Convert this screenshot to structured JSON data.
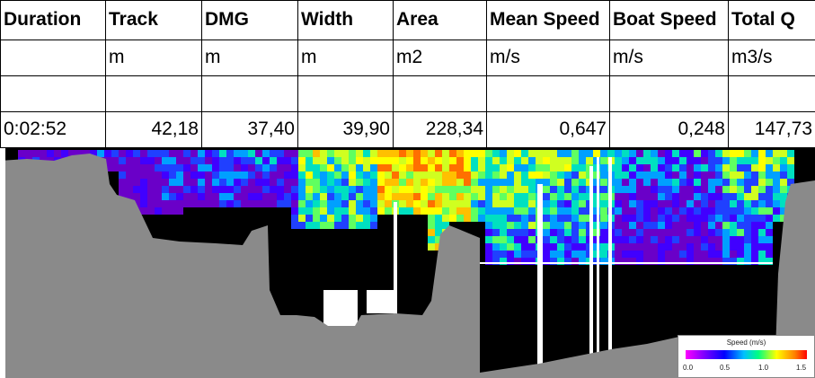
{
  "table": {
    "headers": [
      "Duration",
      "Track",
      "DMG",
      "Width",
      "Area",
      "Mean Speed",
      "Boat Speed",
      "Total Q"
    ],
    "units": [
      "",
      "m",
      "m",
      "m",
      "m2",
      "m/s",
      "m/s",
      "m3/s"
    ],
    "values": [
      "0:02:52",
      "42,18",
      "37,40",
      "39,90",
      "228,34",
      "0,647",
      "0,248",
      "147,73"
    ]
  },
  "legend": {
    "title": "Speed (m/s)",
    "ticks": [
      "0.0",
      "0.5",
      "1.0",
      "1.5"
    ]
  },
  "colors": {
    "land": "#8a8a8a",
    "nodata": "#000000",
    "accent": "#ffff00"
  }
}
